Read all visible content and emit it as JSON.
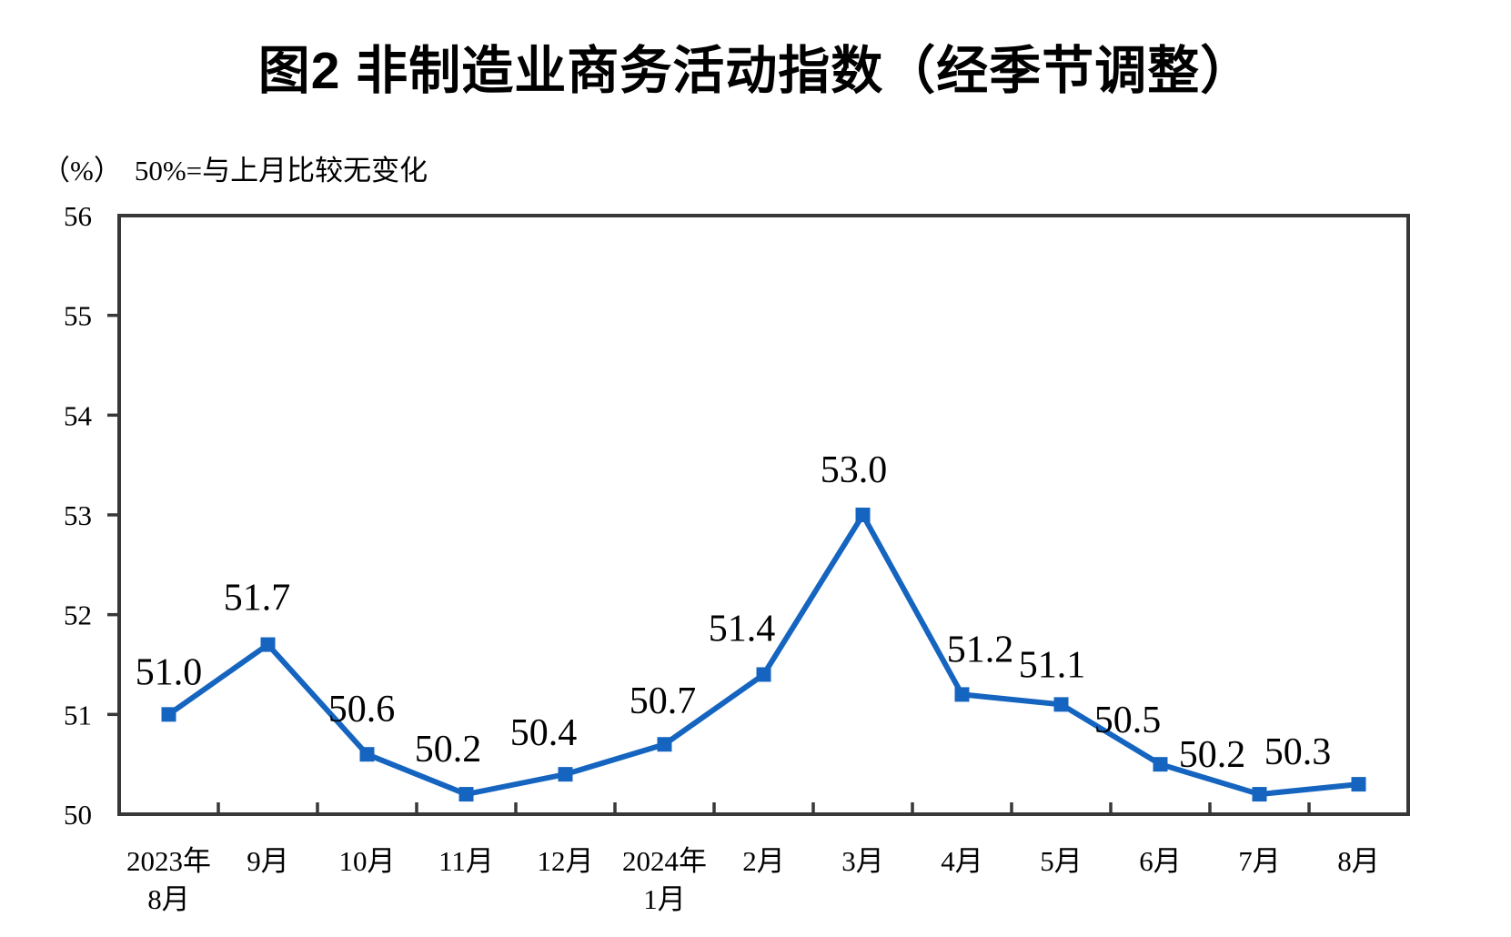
{
  "page": {
    "title": "图2 非制造业商务活动指数（经季节调整）",
    "unit_label": "（%）",
    "baseline_note": "50%=与上月比较无变化"
  },
  "chart_data": {
    "type": "line",
    "title": "图2 非制造业商务活动指数（经季节调整）",
    "ylabel": "（%）",
    "annotation": "50%=与上月比较无变化",
    "categories": [
      [
        "2023年",
        "8月"
      ],
      [
        "9月"
      ],
      [
        "10月"
      ],
      [
        "11月"
      ],
      [
        "12月"
      ],
      [
        "2024年",
        "1月"
      ],
      [
        "2月"
      ],
      [
        "3月"
      ],
      [
        "4月"
      ],
      [
        "5月"
      ],
      [
        "6月"
      ],
      [
        "7月"
      ],
      [
        "8月"
      ]
    ],
    "values": [
      51.0,
      51.7,
      50.6,
      50.2,
      50.4,
      50.7,
      51.4,
      53.0,
      51.2,
      51.1,
      50.5,
      50.2,
      50.3
    ],
    "data_labels": [
      "51.0",
      "51.7",
      "50.6",
      "50.2",
      "50.4",
      "50.7",
      "51.4",
      "53.0",
      "51.2",
      "51.1",
      "50.5",
      "50.2",
      "50.3"
    ],
    "ylim": [
      50,
      56
    ],
    "ytick_step": 1,
    "yticks": [
      50,
      51,
      52,
      53,
      54,
      55,
      56
    ],
    "grid": false,
    "legend": "none",
    "marker": "square",
    "line_color": "#1565c0",
    "axis_color": "#383838",
    "text_color": "#000000"
  }
}
